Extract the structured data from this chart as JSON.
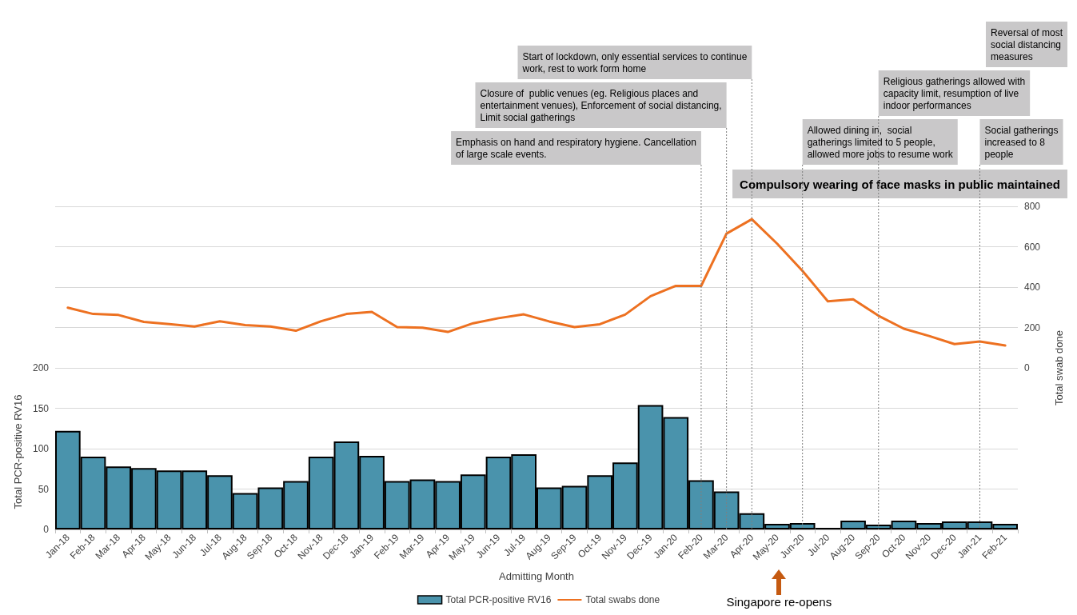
{
  "chart_data": {
    "type": "bar",
    "xlabel": "Admitting Month",
    "ylabel": "Total PCR-positive RV16",
    "y2label": "Total swab done",
    "categories": [
      "Jan-18",
      "Feb-18",
      "Mar-18",
      "Apr-18",
      "May-18",
      "Jun-18",
      "Jul-18",
      "Aug-18",
      "Sep-18",
      "Oct-18",
      "Nov-18",
      "Dec-18",
      "Jan-19",
      "Feb-19",
      "Mar-19",
      "Apr-19",
      "May-19",
      "Jun-19",
      "Jul-19",
      "Aug-19",
      "Sep-19",
      "Oct-19",
      "Nov-19",
      "Dec-19",
      "Jan-20",
      "Feb-20",
      "Mar-20",
      "Apr-20",
      "May-20",
      "Jun-20",
      "Jul-20",
      "Aug-20",
      "Sep-20",
      "Oct-20",
      "Nov-20",
      "Dec-20",
      "Jan-21",
      "Feb-21"
    ],
    "series": [
      {
        "name": "Total PCR-positive RV16",
        "color": "#4a93ac",
        "values": [
          122,
          90,
          78,
          76,
          73,
          73,
          67,
          45,
          52,
          60,
          90,
          109,
          91,
          60,
          62,
          60,
          68,
          90,
          93,
          52,
          54,
          67,
          83,
          154,
          139,
          61,
          47,
          20,
          7,
          8,
          2,
          11,
          6,
          11,
          8,
          10,
          10,
          7
        ]
      },
      {
        "name": "Total swabs done",
        "type": "line",
        "axis": "y2",
        "color": "#ed7121",
        "values": [
          298,
          267,
          262,
          228,
          217,
          205,
          231,
          212,
          205,
          184,
          231,
          267,
          277,
          202,
          199,
          178,
          221,
          246,
          265,
          230,
          202,
          216,
          264,
          355,
          406,
          406,
          665,
          736,
          615,
          480,
          330,
          340,
          258,
          194,
          158,
          118,
          131,
          111
        ]
      }
    ],
    "ylim": [
      0,
      400
    ],
    "yticks": [
      0,
      50,
      100,
      150,
      200
    ],
    "y2lim": [
      -800,
      800
    ],
    "y2ticks": [
      0,
      200,
      400,
      600,
      800
    ],
    "grid": "y",
    "legend": "bottom",
    "ref_lines": [
      {
        "axis": "x",
        "value": "Feb-20",
        "label": "Emphasis on hand and respiratory hygiene. Cancellation of large scale events.",
        "line_style": "dotted"
      },
      {
        "axis": "x",
        "value": "Mar-20",
        "label": "Closure of  public venues (eg. Religious places and entertainment venues), Enforcement of social distancing, Limit social gatherings",
        "line_style": "dotted"
      },
      {
        "axis": "x",
        "value": "Apr-20",
        "label": "Start of lockdown, only essential services to continue work, rest to work form home",
        "line_style": "dotted"
      },
      {
        "axis": "x",
        "value": "Jun-20",
        "label": "Allowed dining in,  social gatherings limited to 5 people, allowed more jobs to resume work",
        "line_style": "dotted"
      },
      {
        "axis": "x",
        "value": "Jan-21",
        "label": "Social gatherings increased to 8 people",
        "line_style": "dotted"
      },
      {
        "axis": "x",
        "value": "Sep-20",
        "label": "Religious gatherings allowed with capacity limit, resumption of live indoor performances",
        "line_style": "dotted"
      }
    ],
    "annotations": [
      "Compulsory wearing of face masks in public maintained",
      "Singapore re-opens",
      "Reversal of most social distancing measures"
    ]
  }
}
